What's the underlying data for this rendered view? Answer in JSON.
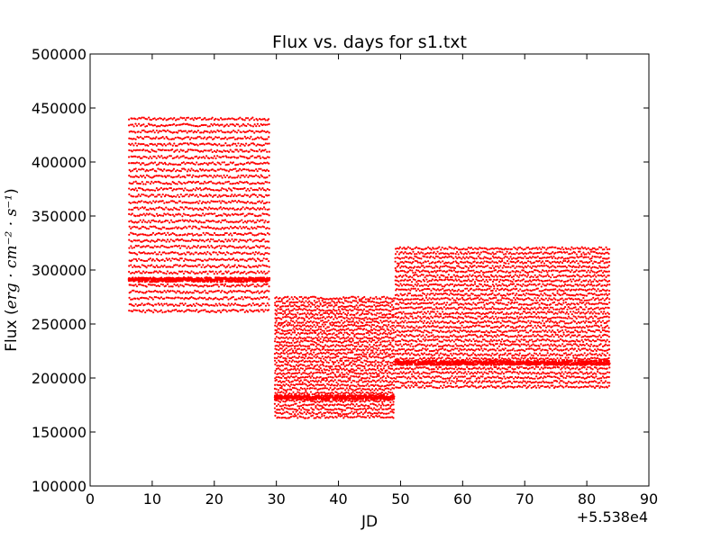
{
  "chart_data": {
    "type": "scatter",
    "title": "Flux vs. days for s1.txt",
    "xlabel": "JD",
    "ylabel": {
      "prefix": "Flux (",
      "math": "erg · cm⁻² · s⁻¹",
      "suffix": ")"
    },
    "x_offset_label": "+5.538e4",
    "xlim": [
      0,
      90
    ],
    "ylim": [
      100000,
      500000
    ],
    "x_ticks": [
      0,
      10,
      20,
      30,
      40,
      50,
      60,
      70,
      80,
      90
    ],
    "y_ticks": [
      100000,
      150000,
      200000,
      250000,
      300000,
      350000,
      400000,
      450000,
      500000
    ],
    "grid": false,
    "marker_color": "#ff0000",
    "segments": [
      {
        "x_range": [
          6.3,
          28.8
        ],
        "flux_range": [
          262000,
          440000
        ],
        "dense_level": 291000
      },
      {
        "x_range": [
          29.8,
          48.9
        ],
        "flux_range": [
          164000,
          274000
        ],
        "dense_level": 182000
      },
      {
        "x_range": [
          49.2,
          83.6
        ],
        "flux_range": [
          192000,
          320000
        ],
        "dense_level": 214000
      }
    ]
  }
}
